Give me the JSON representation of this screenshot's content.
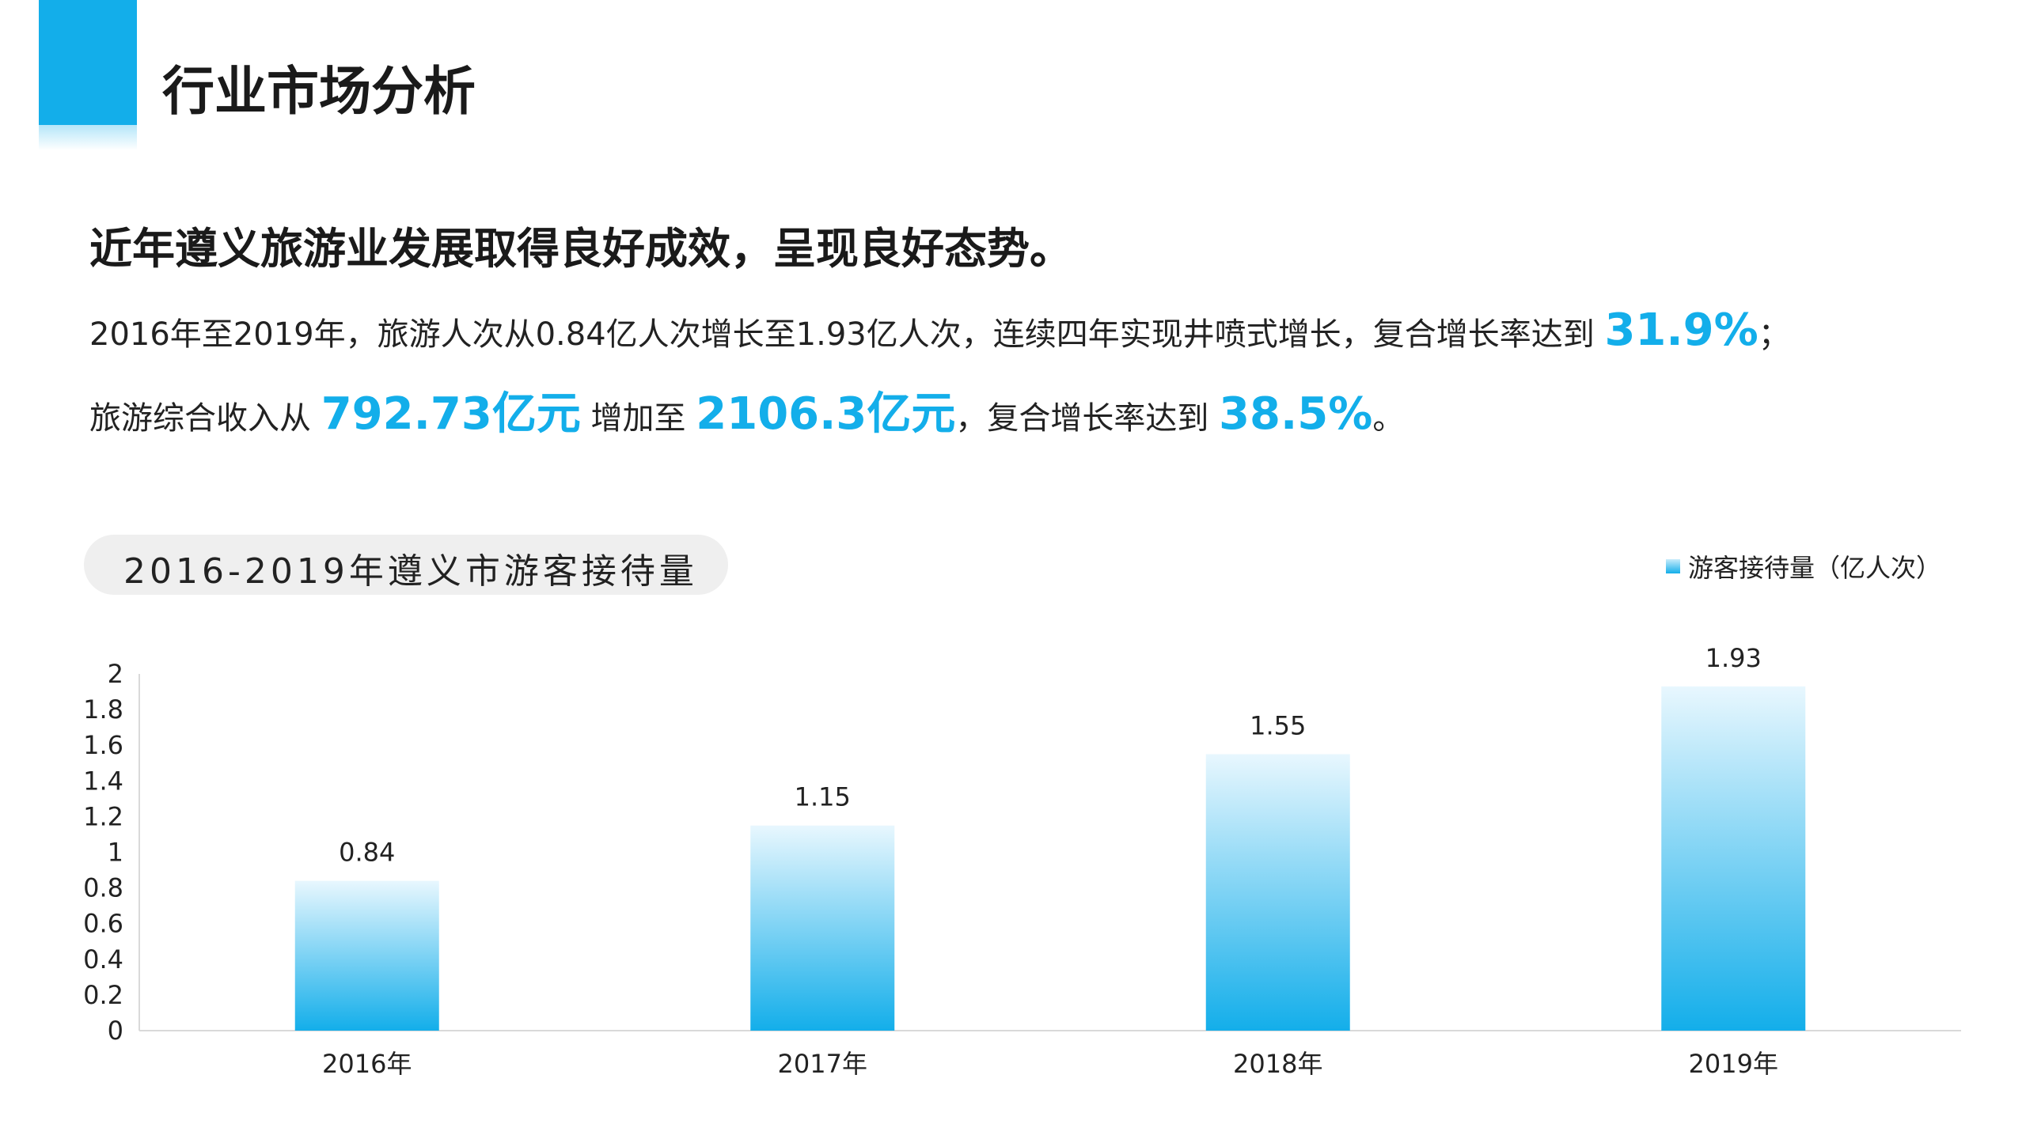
{
  "header": {
    "title": "行业市场分析"
  },
  "headline": "近年遵义旅游业发展取得良好成效，呈现良好态势。",
  "paragraph1": {
    "text": "2016年至2019年，旅游人次从0.84亿人次增长至1.93亿人次，连续四年实现井喷式增长，复合增长率达到 ",
    "highlight": "31.9%",
    "tail": "；"
  },
  "paragraph2": {
    "pre": "旅游综合收入从 ",
    "h1": "792.73亿元",
    "mid": " 增加至 ",
    "h2": "2106.3亿元",
    "mid2": "，复合增长率达到 ",
    "h3": "38.5%",
    "tail": "。"
  },
  "colors": {
    "accent": "#13aeea",
    "bar_top": "#e8f7fe",
    "bar_bottom": "#13aeea",
    "pill": "#efefef"
  },
  "chart_data": {
    "type": "bar",
    "title": "2016-2019年遵义市游客接待量",
    "categories": [
      "2016年",
      "2017年",
      "2018年",
      "2019年"
    ],
    "series": [
      {
        "name": "游客接待量（亿人次）",
        "values": [
          0.84,
          1.15,
          1.55,
          1.93
        ]
      }
    ],
    "data_labels": [
      "0.84",
      "1.15",
      "1.55",
      "1.93"
    ],
    "yticks": [
      "0",
      "0.2",
      "0.4",
      "0.6",
      "0.8",
      "1",
      "1.2",
      "1.4",
      "1.6",
      "1.8",
      "2"
    ],
    "ylim": [
      0,
      2
    ],
    "grid": false,
    "legend_position": "top-right"
  }
}
